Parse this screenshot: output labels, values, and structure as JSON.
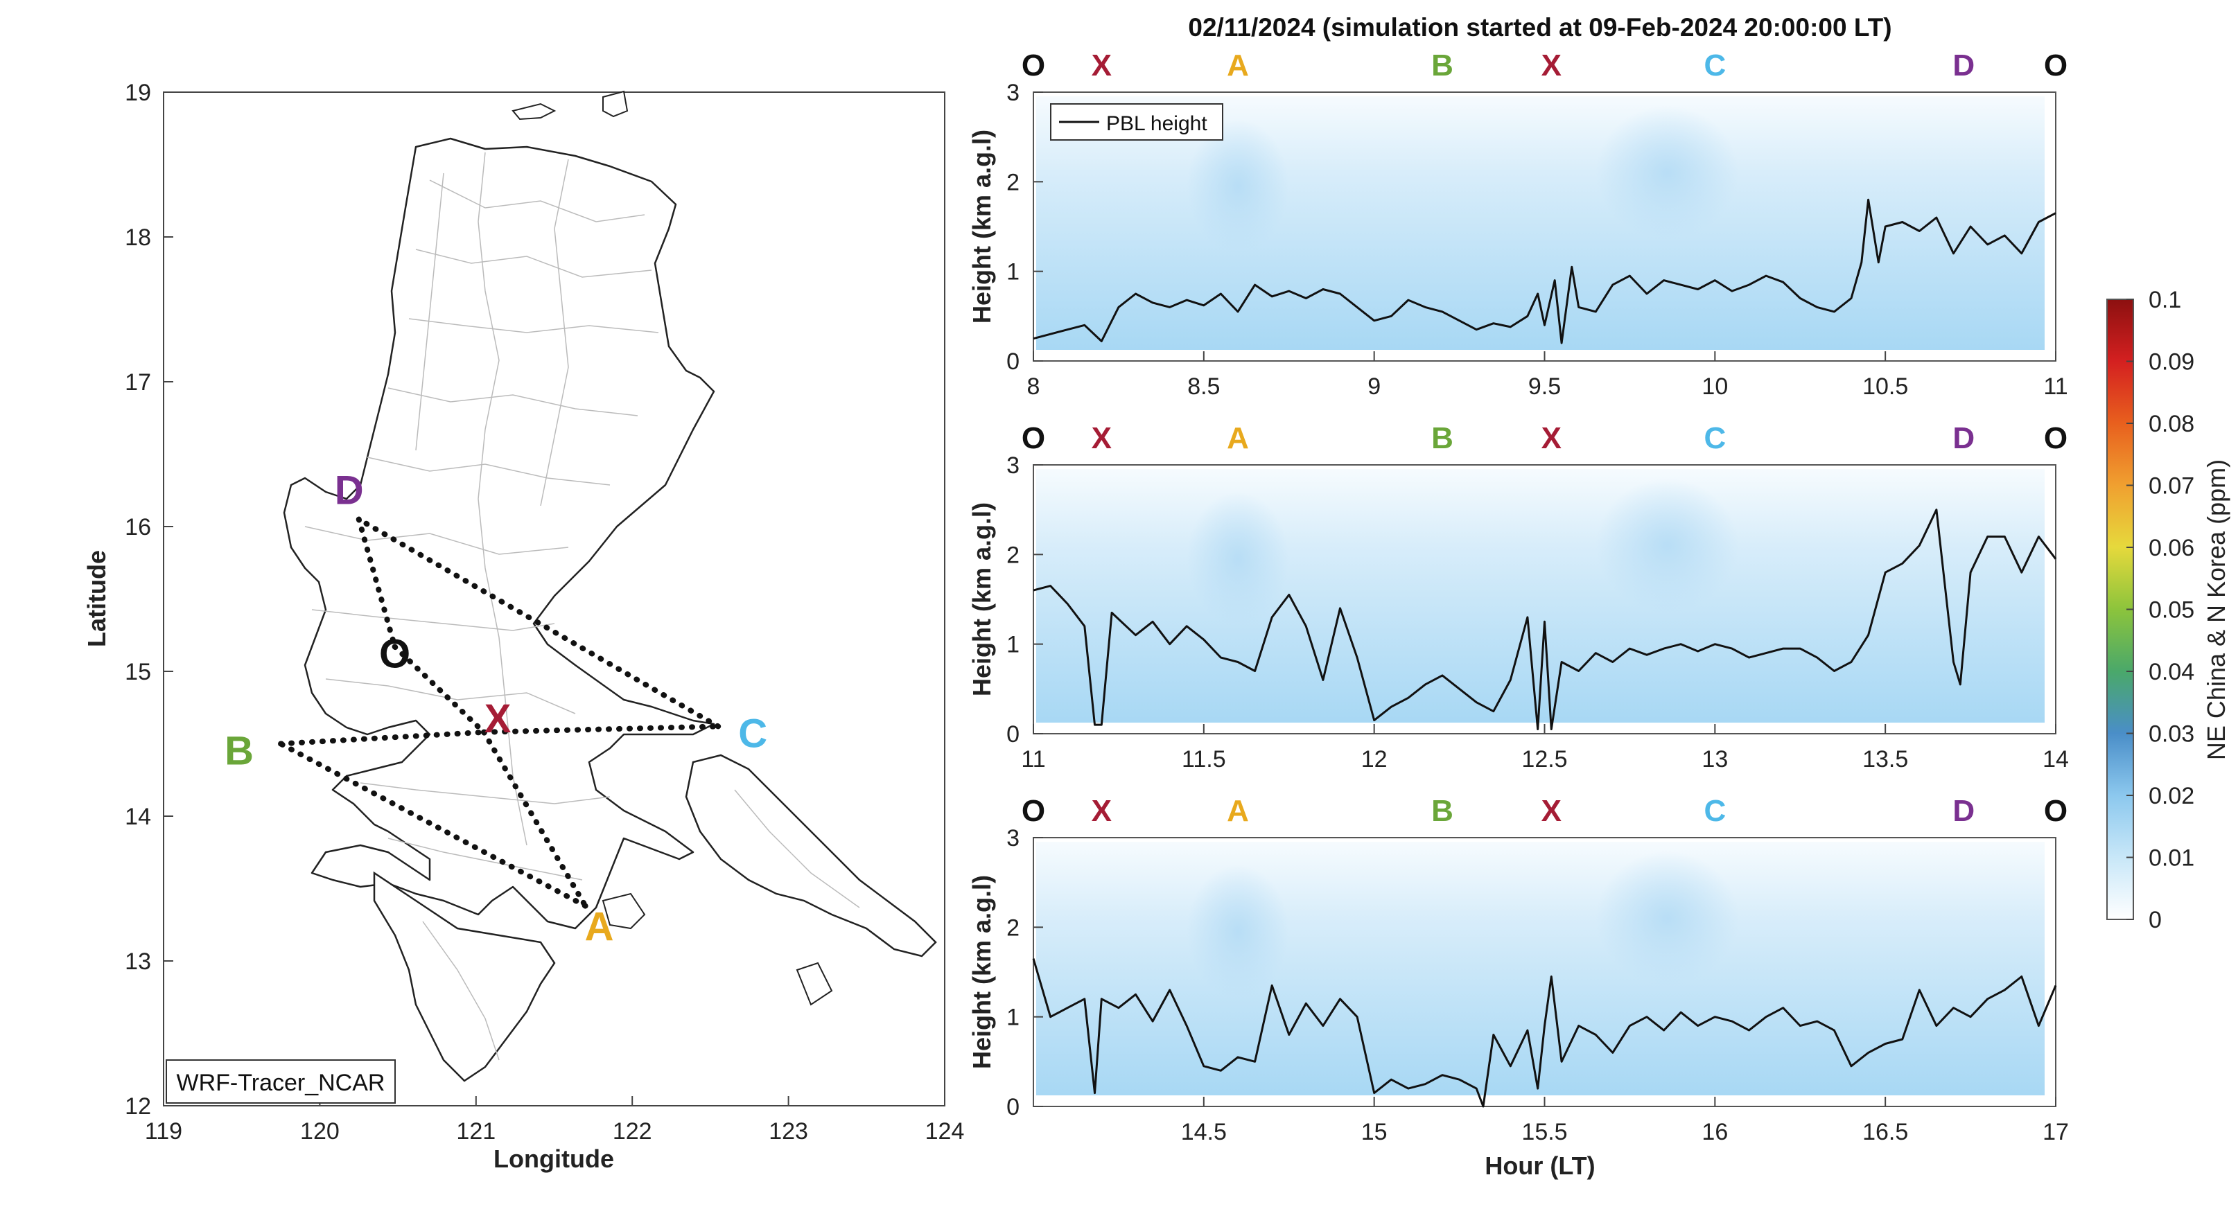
{
  "figure": {
    "title": "02/11/2024 (simulation started at 09-Feb-2024 20:00:00 LT)",
    "colors": {
      "O": "#111111",
      "X": "#a51c35",
      "A": "#e8a91d",
      "B": "#6aa639",
      "C": "#4db8e8",
      "D": "#7a3090"
    }
  },
  "chart_data": [
    {
      "type": "map",
      "xlabel": "Longitude",
      "ylabel": "Latitude",
      "xlim": [
        119,
        124
      ],
      "ylim": [
        12,
        19
      ],
      "xticks": [
        "119",
        "120",
        "121",
        "122",
        "123",
        "124"
      ],
      "yticks": [
        "12",
        "13",
        "14",
        "15",
        "16",
        "17",
        "18",
        "19"
      ],
      "model_label": "WRF-Tracer_NCAR",
      "points": [
        {
          "name": "D",
          "lon": 120.25,
          "lat": 16.05
        },
        {
          "name": "O",
          "lon": 120.48,
          "lat": 15.17
        },
        {
          "name": "X",
          "lon": 121.05,
          "lat": 14.58
        },
        {
          "name": "C",
          "lon": 122.55,
          "lat": 14.62
        },
        {
          "name": "B",
          "lon": 119.75,
          "lat": 14.5
        },
        {
          "name": "A",
          "lon": 121.7,
          "lat": 13.38
        }
      ],
      "routes": [
        [
          "D",
          "O"
        ],
        [
          "O",
          "X"
        ],
        [
          "X",
          "A"
        ],
        [
          "A",
          "B"
        ],
        [
          "B",
          "X"
        ],
        [
          "X",
          "C"
        ],
        [
          "C",
          "D"
        ]
      ]
    },
    {
      "type": "line",
      "series_name": "PBL height",
      "xlim": [
        8,
        11
      ],
      "ylim": [
        0,
        3
      ],
      "xticks": [
        "8",
        "8.5",
        "9",
        "9.5",
        "10",
        "10.5",
        "11"
      ],
      "yticks": [
        "0",
        "1",
        "2",
        "3"
      ],
      "ylabel": "Height (km a.g.l)",
      "route_labels": [
        {
          "t": "O",
          "x": 8.0
        },
        {
          "t": "X",
          "x": 8.2
        },
        {
          "t": "A",
          "x": 8.6
        },
        {
          "t": "B",
          "x": 9.2
        },
        {
          "t": "X",
          "x": 9.52
        },
        {
          "t": "C",
          "x": 10.0
        },
        {
          "t": "D",
          "x": 10.73
        },
        {
          "t": "O",
          "x": 11.0
        }
      ],
      "x": [
        8.0,
        8.05,
        8.1,
        8.15,
        8.2,
        8.25,
        8.3,
        8.35,
        8.4,
        8.45,
        8.5,
        8.55,
        8.6,
        8.65,
        8.7,
        8.75,
        8.8,
        8.85,
        8.9,
        8.95,
        9.0,
        9.05,
        9.1,
        9.15,
        9.2,
        9.25,
        9.3,
        9.35,
        9.4,
        9.45,
        9.48,
        9.5,
        9.53,
        9.55,
        9.58,
        9.6,
        9.65,
        9.7,
        9.75,
        9.8,
        9.85,
        9.9,
        9.95,
        10.0,
        10.05,
        10.1,
        10.15,
        10.2,
        10.25,
        10.3,
        10.35,
        10.4,
        10.43,
        10.45,
        10.48,
        10.5,
        10.55,
        10.6,
        10.65,
        10.7,
        10.75,
        10.8,
        10.85,
        10.9,
        10.95,
        11.0
      ],
      "y": [
        0.25,
        0.3,
        0.35,
        0.4,
        0.22,
        0.6,
        0.75,
        0.65,
        0.6,
        0.68,
        0.62,
        0.75,
        0.55,
        0.85,
        0.72,
        0.78,
        0.7,
        0.8,
        0.75,
        0.6,
        0.45,
        0.5,
        0.68,
        0.6,
        0.55,
        0.45,
        0.35,
        0.42,
        0.38,
        0.5,
        0.75,
        0.4,
        0.9,
        0.2,
        1.05,
        0.6,
        0.55,
        0.85,
        0.95,
        0.75,
        0.9,
        0.85,
        0.8,
        0.9,
        0.78,
        0.85,
        0.95,
        0.88,
        0.7,
        0.6,
        0.55,
        0.7,
        1.1,
        1.8,
        1.1,
        1.5,
        1.55,
        1.45,
        1.6,
        1.2,
        1.5,
        1.3,
        1.4,
        1.2,
        1.55,
        1.65
      ]
    },
    {
      "type": "line",
      "series_name": "PBL height",
      "xlim": [
        11,
        14
      ],
      "ylim": [
        0,
        3
      ],
      "xticks": [
        "11",
        "11.5",
        "12",
        "12.5",
        "13",
        "13.5",
        "14"
      ],
      "yticks": [
        "0",
        "1",
        "2",
        "3"
      ],
      "ylabel": "Height (km a.g.l)",
      "route_labels": [
        {
          "t": "O",
          "x": 11.0
        },
        {
          "t": "X",
          "x": 11.2
        },
        {
          "t": "A",
          "x": 11.6
        },
        {
          "t": "B",
          "x": 12.2
        },
        {
          "t": "X",
          "x": 12.52
        },
        {
          "t": "C",
          "x": 13.0
        },
        {
          "t": "D",
          "x": 13.73
        },
        {
          "t": "O",
          "x": 14.0
        }
      ],
      "x": [
        11.0,
        11.05,
        11.1,
        11.15,
        11.18,
        11.2,
        11.23,
        11.3,
        11.35,
        11.4,
        11.45,
        11.5,
        11.55,
        11.6,
        11.65,
        11.7,
        11.75,
        11.8,
        11.85,
        11.9,
        11.95,
        12.0,
        12.05,
        12.1,
        12.15,
        12.2,
        12.25,
        12.3,
        12.35,
        12.4,
        12.45,
        12.48,
        12.5,
        12.52,
        12.55,
        12.6,
        12.65,
        12.7,
        12.75,
        12.8,
        12.85,
        12.9,
        12.95,
        13.0,
        13.05,
        13.1,
        13.15,
        13.2,
        13.25,
        13.3,
        13.35,
        13.4,
        13.45,
        13.5,
        13.55,
        13.6,
        13.65,
        13.7,
        13.72,
        13.75,
        13.8,
        13.85,
        13.9,
        13.95,
        14.0
      ],
      "y": [
        1.6,
        1.65,
        1.45,
        1.2,
        0.1,
        0.1,
        1.35,
        1.1,
        1.25,
        1.0,
        1.2,
        1.05,
        0.85,
        0.8,
        0.7,
        1.3,
        1.55,
        1.2,
        0.6,
        1.4,
        0.85,
        0.15,
        0.3,
        0.4,
        0.55,
        0.65,
        0.5,
        0.35,
        0.25,
        0.6,
        1.3,
        0.05,
        1.25,
        0.05,
        0.8,
        0.7,
        0.9,
        0.8,
        0.95,
        0.88,
        0.95,
        1.0,
        0.92,
        1.0,
        0.95,
        0.85,
        0.9,
        0.95,
        0.95,
        0.85,
        0.7,
        0.8,
        1.1,
        1.8,
        1.9,
        2.1,
        2.5,
        0.8,
        0.55,
        1.8,
        2.2,
        2.2,
        1.8,
        2.2,
        1.95
      ]
    },
    {
      "type": "line",
      "series_name": "PBL height",
      "xlim": [
        14,
        17
      ],
      "ylim": [
        0,
        3
      ],
      "xticks": [
        "14.5",
        "15",
        "15.5",
        "16",
        "16.5",
        "17"
      ],
      "yticks": [
        "0",
        "1",
        "2",
        "3"
      ],
      "ylabel": "Height (km a.g.l)",
      "xlabel": "Hour (LT)",
      "route_labels": [
        {
          "t": "O",
          "x": 14.0
        },
        {
          "t": "X",
          "x": 14.2
        },
        {
          "t": "A",
          "x": 14.6
        },
        {
          "t": "B",
          "x": 15.2
        },
        {
          "t": "X",
          "x": 15.52
        },
        {
          "t": "C",
          "x": 16.0
        },
        {
          "t": "D",
          "x": 16.73
        },
        {
          "t": "O",
          "x": 17.0
        }
      ],
      "x": [
        14.0,
        14.05,
        14.1,
        14.15,
        14.18,
        14.2,
        14.25,
        14.3,
        14.35,
        14.4,
        14.45,
        14.5,
        14.55,
        14.6,
        14.65,
        14.7,
        14.75,
        14.8,
        14.85,
        14.9,
        14.95,
        15.0,
        15.05,
        15.1,
        15.15,
        15.2,
        15.25,
        15.3,
        15.32,
        15.35,
        15.4,
        15.45,
        15.48,
        15.5,
        15.52,
        15.55,
        15.6,
        15.65,
        15.7,
        15.75,
        15.8,
        15.85,
        15.9,
        15.95,
        16.0,
        16.05,
        16.1,
        16.15,
        16.2,
        16.25,
        16.3,
        16.35,
        16.4,
        16.45,
        16.5,
        16.55,
        16.6,
        16.65,
        16.7,
        16.75,
        16.8,
        16.85,
        16.9,
        16.95,
        17.0
      ],
      "y": [
        1.65,
        1.0,
        1.1,
        1.2,
        0.15,
        1.2,
        1.1,
        1.25,
        0.95,
        1.3,
        0.9,
        0.45,
        0.4,
        0.55,
        0.5,
        1.35,
        0.8,
        1.15,
        0.9,
        1.2,
        1.0,
        0.15,
        0.3,
        0.2,
        0.25,
        0.35,
        0.3,
        0.2,
        0.0,
        0.8,
        0.45,
        0.85,
        0.2,
        0.9,
        1.45,
        0.5,
        0.9,
        0.8,
        0.6,
        0.9,
        1.0,
        0.85,
        1.05,
        0.9,
        1.0,
        0.95,
        0.85,
        1.0,
        1.1,
        0.9,
        0.95,
        0.85,
        0.45,
        0.6,
        0.7,
        0.75,
        1.3,
        0.9,
        1.1,
        1.0,
        1.2,
        1.3,
        1.45,
        0.9,
        1.35
      ]
    },
    {
      "type": "colorbar",
      "label": "NE China & N Korea (ppm)",
      "ticks": [
        "0",
        "0.01",
        "0.02",
        "0.03",
        "0.04",
        "0.05",
        "0.06",
        "0.07",
        "0.08",
        "0.09",
        "0.1"
      ],
      "range": [
        0,
        0.1
      ]
    }
  ],
  "legend": {
    "label": "PBL height"
  }
}
